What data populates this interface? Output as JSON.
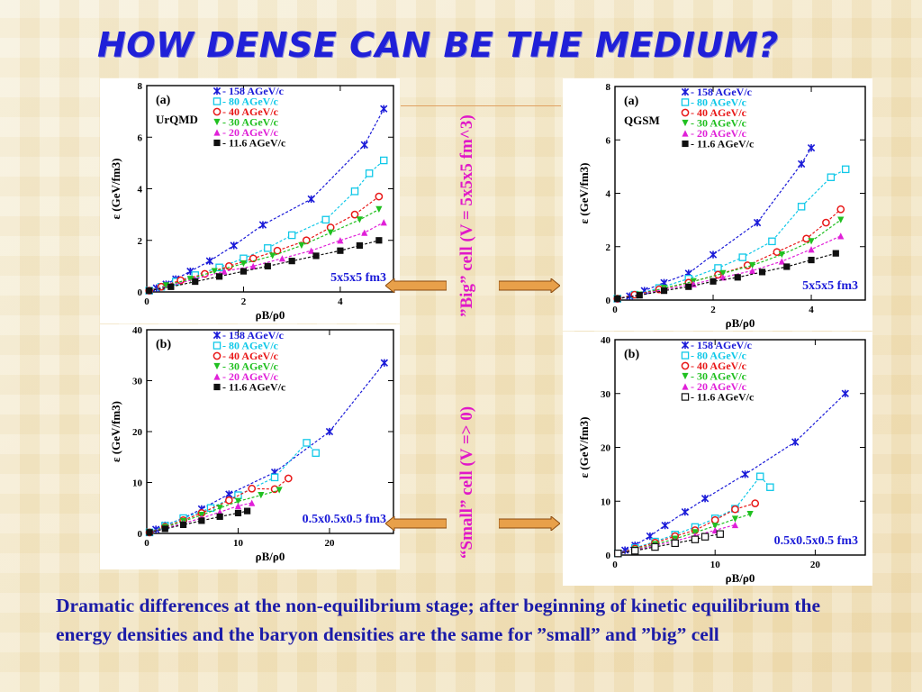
{
  "slide": {
    "title": "HOW DENSE CAN BE THE MEDIUM?",
    "big_cell_label": "”Big” cell (V = 5x5x5 fm^3)",
    "small_cell_label": "“Small” cell (V => 0)",
    "conclusion": "Dramatic differences at the non-equilibrium stage; after beginning of kinetic equilibrium the energy densities and the baryon densities are the same for ”small” and ”big” cell",
    "colors": {
      "title": "#2020d8",
      "vertical_labels": "#e018c8",
      "conclusion": "#1c1ca8",
      "arrow_fill": "#e8a04a"
    },
    "arrows": [
      "left-arrow-icon",
      "right-arrow-icon",
      "left-arrow-icon",
      "right-arrow-icon"
    ]
  },
  "chart_data": [
    {
      "id": "urqmd-big",
      "type": "scatter",
      "panel_label": "(a)",
      "model": "UrQMD",
      "volume": "5x5x5 fm3",
      "ylabel": "ε (GeV/fm3)",
      "xlabel": "ρB/ρ0",
      "xlim": [
        0,
        5.1
      ],
      "ylim": [
        0,
        8
      ],
      "xticks": [
        "0",
        "2",
        "4"
      ],
      "yticks": [
        "0",
        "2",
        "4",
        "6",
        "8"
      ],
      "series": [
        {
          "name": "158 AGeV/c",
          "color": "#1a1ad8",
          "marker": "star",
          "x": [
            0.05,
            0.2,
            0.4,
            0.6,
            0.9,
            1.3,
            1.8,
            2.4,
            3.4,
            4.5,
            4.9
          ],
          "y": [
            0.05,
            0.15,
            0.3,
            0.5,
            0.8,
            1.2,
            1.8,
            2.6,
            3.6,
            5.7,
            7.1
          ]
        },
        {
          "name": "80 AGeV/c",
          "color": "#10c8e8",
          "marker": "open-square",
          "x": [
            0.05,
            0.3,
            0.6,
            1.0,
            1.5,
            2.0,
            2.5,
            3.0,
            3.7,
            4.3,
            4.6,
            4.9
          ],
          "y": [
            0.05,
            0.2,
            0.4,
            0.65,
            0.95,
            1.3,
            1.7,
            2.2,
            2.8,
            3.9,
            4.6,
            5.1
          ]
        },
        {
          "name": "40 AGeV/c",
          "color": "#e81818",
          "marker": "open-circle",
          "x": [
            0.05,
            0.3,
            0.7,
            1.2,
            1.7,
            2.2,
            2.7,
            3.3,
            3.8,
            4.3,
            4.8
          ],
          "y": [
            0.05,
            0.2,
            0.45,
            0.7,
            1.0,
            1.3,
            1.6,
            2.0,
            2.5,
            3.0,
            3.7
          ]
        },
        {
          "name": "30 AGeV/c",
          "color": "#20c020",
          "marker": "triangle-down",
          "x": [
            0.05,
            0.4,
            0.9,
            1.4,
            2.0,
            2.6,
            3.2,
            3.8,
            4.4,
            4.8
          ],
          "y": [
            0.05,
            0.25,
            0.5,
            0.8,
            1.1,
            1.4,
            1.8,
            2.3,
            2.8,
            3.2
          ]
        },
        {
          "name": "20 AGeV/c",
          "color": "#e020d8",
          "marker": "triangle-up",
          "x": [
            0.05,
            0.5,
            1.0,
            1.6,
            2.2,
            2.8,
            3.4,
            4.0,
            4.5,
            4.9
          ],
          "y": [
            0.05,
            0.25,
            0.5,
            0.8,
            1.0,
            1.3,
            1.6,
            2.0,
            2.3,
            2.7
          ]
        },
        {
          "name": "11.6 AGeV/c",
          "color": "#101010",
          "marker": "filled-square",
          "x": [
            0.05,
            0.5,
            1.0,
            1.5,
            2.0,
            2.5,
            3.0,
            3.5,
            4.0,
            4.4,
            4.8
          ],
          "y": [
            0.05,
            0.2,
            0.4,
            0.6,
            0.8,
            1.0,
            1.2,
            1.4,
            1.6,
            1.8,
            2.0
          ]
        }
      ]
    },
    {
      "id": "urqmd-small",
      "type": "scatter",
      "panel_label": "(b)",
      "model": "",
      "volume": "0.5x0.5x0.5 fm3",
      "ylabel": "ε (GeV/fm3)",
      "xlabel": "ρB/ρ0",
      "xlim": [
        0,
        27
      ],
      "ylim": [
        0,
        40
      ],
      "xticks": [
        "0",
        "10",
        "20"
      ],
      "yticks": [
        "0",
        "10",
        "20",
        "30",
        "40"
      ],
      "series": [
        {
          "name": "158 AGeV/c",
          "color": "#1a1ad8",
          "marker": "star",
          "x": [
            0.3,
            1,
            2,
            4,
            6,
            9,
            14,
            20,
            26
          ],
          "y": [
            0.2,
            0.8,
            1.6,
            3.0,
            4.8,
            7.7,
            12,
            20,
            33.5
          ]
        },
        {
          "name": "80 AGeV/c",
          "color": "#10c8e8",
          "marker": "open-square",
          "x": [
            0.3,
            2,
            4,
            7,
            10,
            14,
            17.5,
            18.5
          ],
          "y": [
            0.2,
            1.5,
            3,
            5,
            7.5,
            11,
            17.8,
            15.8
          ]
        },
        {
          "name": "40 AGeV/c",
          "color": "#e81818",
          "marker": "open-circle",
          "x": [
            0.3,
            2,
            4,
            6,
            9,
            11.5,
            14,
            15.5
          ],
          "y": [
            0.2,
            1.3,
            2.6,
            4,
            6.5,
            8.8,
            8.7,
            10.8
          ]
        },
        {
          "name": "30 AGeV/c",
          "color": "#20c020",
          "marker": "triangle-down",
          "x": [
            0.3,
            2,
            4,
            6,
            8,
            10,
            12.5,
            14.5
          ],
          "y": [
            0.2,
            1.2,
            2.4,
            3.6,
            5,
            6.3,
            7.5,
            8.5
          ]
        },
        {
          "name": "20 AGeV/c",
          "color": "#e020d8",
          "marker": "triangle-up",
          "x": [
            0.3,
            2,
            4,
            6,
            8,
            10,
            11.5
          ],
          "y": [
            0.2,
            1.0,
            2.0,
            3.0,
            4.2,
            5.4,
            6.0
          ]
        },
        {
          "name": "11.6 AGeV/c",
          "color": "#101010",
          "marker": "filled-square",
          "x": [
            0.3,
            2,
            4,
            6,
            8,
            10,
            11
          ],
          "y": [
            0.2,
            0.9,
            1.7,
            2.5,
            3.3,
            4.0,
            4.4
          ]
        }
      ]
    },
    {
      "id": "qgsm-big",
      "type": "scatter",
      "panel_label": "(a)",
      "model": "QGSM",
      "volume": "5x5x5 fm3",
      "ylabel": "ε (GeV/fm3)",
      "xlabel": "ρB/ρ0",
      "xlim": [
        0,
        5.1
      ],
      "ylim": [
        0,
        8
      ],
      "xticks": [
        "0",
        "2",
        "4"
      ],
      "yticks": [
        "0",
        "2",
        "4",
        "6",
        "8"
      ],
      "series": [
        {
          "name": "158 AGeV/c",
          "color": "#1a1ad8",
          "marker": "star",
          "x": [
            0.05,
            0.3,
            0.6,
            1.0,
            1.5,
            2.0,
            2.9,
            3.8,
            4.0
          ],
          "y": [
            0.05,
            0.15,
            0.35,
            0.65,
            1.0,
            1.7,
            2.9,
            5.1,
            5.7
          ]
        },
        {
          "name": "80 AGeV/c",
          "color": "#10c8e8",
          "marker": "open-square",
          "x": [
            0.05,
            0.4,
            0.9,
            1.5,
            2.1,
            2.6,
            3.2,
            3.8,
            4.4,
            4.7
          ],
          "y": [
            0.05,
            0.2,
            0.45,
            0.8,
            1.2,
            1.6,
            2.2,
            3.5,
            4.6,
            4.9
          ]
        },
        {
          "name": "40 AGeV/c",
          "color": "#e81818",
          "marker": "open-circle",
          "x": [
            0.05,
            0.4,
            0.9,
            1.5,
            2.1,
            2.7,
            3.3,
            3.9,
            4.3,
            4.6
          ],
          "y": [
            0.05,
            0.2,
            0.4,
            0.65,
            0.95,
            1.3,
            1.8,
            2.3,
            2.9,
            3.4
          ]
        },
        {
          "name": "30 AGeV/c",
          "color": "#20c020",
          "marker": "triangle-down",
          "x": [
            0.05,
            0.5,
            1.0,
            1.6,
            2.2,
            2.8,
            3.4,
            4.0,
            4.6
          ],
          "y": [
            0.05,
            0.2,
            0.45,
            0.7,
            1.0,
            1.3,
            1.7,
            2.2,
            3.0
          ]
        },
        {
          "name": "20 AGeV/c",
          "color": "#e020d8",
          "marker": "triangle-up",
          "x": [
            0.05,
            0.5,
            1.0,
            1.6,
            2.2,
            2.8,
            3.4,
            4.0,
            4.6
          ],
          "y": [
            0.05,
            0.2,
            0.4,
            0.6,
            0.85,
            1.1,
            1.45,
            1.9,
            2.4
          ]
        },
        {
          "name": "11.6 AGeV/c",
          "color": "#101010",
          "marker": "filled-square",
          "x": [
            0.05,
            0.5,
            1.0,
            1.5,
            2.0,
            2.5,
            3.0,
            3.5,
            4.0,
            4.5
          ],
          "y": [
            0.05,
            0.18,
            0.35,
            0.5,
            0.7,
            0.85,
            1.05,
            1.25,
            1.5,
            1.75
          ]
        }
      ]
    },
    {
      "id": "qgsm-small",
      "type": "scatter",
      "panel_label": "(b)",
      "model": "",
      "volume": "0.5x0.5x0.5 fm3",
      "ylabel": "ε (GeV/fm3)",
      "xlabel": "ρB/ρ0",
      "xlim": [
        0,
        25
      ],
      "ylim": [
        0,
        40
      ],
      "xticks": [
        "0",
        "10",
        "20"
      ],
      "yticks": [
        "0",
        "10",
        "20",
        "30",
        "40"
      ],
      "series": [
        {
          "name": "158 AGeV/c",
          "color": "#1a1ad8",
          "marker": "star",
          "x": [
            0.3,
            1,
            2,
            3.5,
            5,
            7,
            9,
            13,
            18,
            23
          ],
          "y": [
            0.3,
            0.9,
            1.8,
            3.5,
            5.5,
            8,
            10.5,
            15,
            21,
            30
          ]
        },
        {
          "name": "80 AGeV/c",
          "color": "#10c8e8",
          "marker": "open-square",
          "x": [
            0.3,
            2,
            4,
            6,
            8,
            10,
            12,
            14.5,
            15.5
          ],
          "y": [
            0.3,
            1.3,
            2.5,
            3.8,
            5.2,
            6.8,
            8.6,
            14.6,
            12.6
          ]
        },
        {
          "name": "40 AGeV/c",
          "color": "#e81818",
          "marker": "open-circle",
          "x": [
            0.3,
            2,
            4,
            6,
            8,
            10,
            12,
            14
          ],
          "y": [
            0.3,
            1.2,
            2.3,
            3.5,
            4.6,
            6.5,
            8.5,
            9.6
          ]
        },
        {
          "name": "30 AGeV/c",
          "color": "#20c020",
          "marker": "triangle-down",
          "x": [
            0.3,
            2,
            4,
            6,
            8,
            10,
            12,
            13.5
          ],
          "y": [
            0.3,
            1.0,
            2.0,
            3.0,
            4.2,
            5.4,
            6.7,
            7.6
          ]
        },
        {
          "name": "20 AGeV/c",
          "color": "#e020d8",
          "marker": "triangle-up",
          "x": [
            0.3,
            2,
            4,
            6,
            8,
            10,
            12
          ],
          "y": [
            0.3,
            0.9,
            1.8,
            2.6,
            3.6,
            4.6,
            5.6
          ]
        },
        {
          "name": "11.6 AGeV/c",
          "color": "#101010",
          "marker": "open-square-black",
          "x": [
            0.3,
            2,
            4,
            6,
            8,
            9,
            10.5
          ],
          "y": [
            0.3,
            0.8,
            1.5,
            2.2,
            2.9,
            3.4,
            3.9
          ]
        }
      ]
    }
  ]
}
